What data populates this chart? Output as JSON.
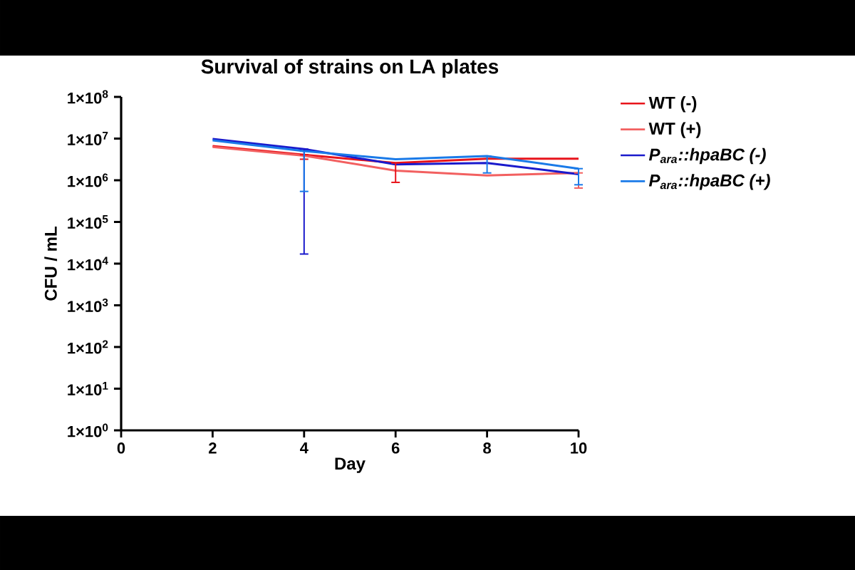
{
  "chart_data": {
    "type": "line",
    "title": "Survival of strains on LA plates",
    "xlabel": "Day",
    "ylabel": "CFU / mL",
    "x": [
      2,
      4,
      6,
      8,
      10
    ],
    "series": [
      {
        "name": "WT (-)",
        "color": "#e8141b",
        "values": [
          6600000,
          4100000,
          2600000,
          3300000,
          3300000
        ],
        "errors": [
          null,
          [
            3200000,
            4100000
          ],
          [
            890000,
            2600000
          ],
          null,
          null
        ]
      },
      {
        "name": "WT (+)",
        "color": "#f26060",
        "values": [
          6300000,
          3900000,
          1700000,
          1300000,
          1500000
        ],
        "errors": [
          null,
          null,
          null,
          null,
          [
            650000,
            1500000
          ]
        ]
      },
      {
        "name": "*P$_{ara}$::hpaBC (-)*",
        "color": "#1a1acc",
        "values": [
          9800000,
          5600000,
          2400000,
          2600000,
          1400000
        ],
        "errors": [
          null,
          [
            17000,
            5600000
          ],
          null,
          null,
          null
        ]
      },
      {
        "name": "*P$_{ara}$::hpaBC (+)*",
        "color": "#1a7ae8",
        "values": [
          9100000,
          5000000,
          3200000,
          3800000,
          1900000
        ],
        "errors": [
          null,
          [
            540000,
            5000000
          ],
          null,
          [
            1500000,
            3800000
          ],
          [
            780000,
            1900000
          ]
        ]
      }
    ],
    "log": "y",
    "xlim": [
      0,
      10
    ],
    "xticks": [
      0,
      2,
      4,
      6,
      8,
      10
    ],
    "ylim": [
      1,
      100000000
    ],
    "yticks": [
      {
        "value": 1,
        "label": "1×10$^{0}$"
      },
      {
        "value": 10,
        "label": "1×10$^{1}$"
      },
      {
        "value": 100,
        "label": "1×10$^{2}$"
      },
      {
        "value": 1000,
        "label": "1×10$^{3}$"
      },
      {
        "value": 10000,
        "label": "1×10$^{4}$"
      },
      {
        "value": 100000,
        "label": "1×10$^{5}$"
      },
      {
        "value": 1000000,
        "label": "1×10$^{6}$"
      },
      {
        "value": 10000000,
        "label": "1×10$^{7}$"
      },
      {
        "value": 100000000,
        "label": "1×10$^{8}$"
      }
    ],
    "legend": "right",
    "marker": "none",
    "line_style": "solid",
    "grid": false
  }
}
